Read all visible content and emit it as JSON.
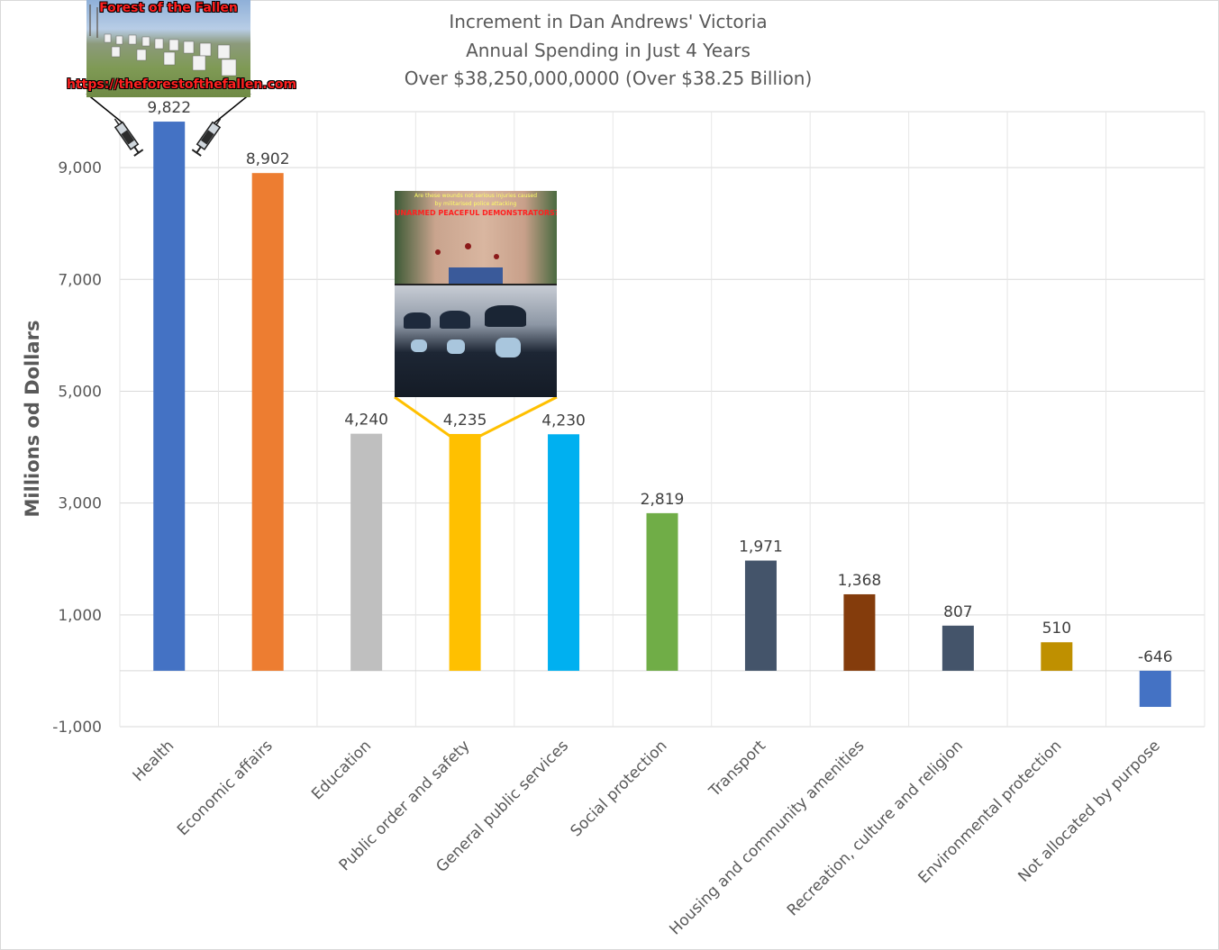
{
  "title_lines": [
    "Increment in Dan Andrews' Victoria",
    "Annual Spending in Just 4 Years",
    "Over $38,250,000,0000 (Over $38.25 Billion)"
  ],
  "forest_image": {
    "heading": "Forest of the Fallen",
    "url": "https://theforestofthefallen.com"
  },
  "police_image": {
    "caption_line1": "Are these wounds not serious injuries caused",
    "caption_line2": "by militarised police attacking",
    "caption_line3": "UNARMED PEACEFUL DEMONSTRATORS?"
  },
  "chart_data": {
    "type": "bar",
    "title": "Increment in Dan Andrews' Victoria Annual Spending in Just 4 Years Over $38,250,000,0000 (Over $38.25 Billion)",
    "xlabel": "",
    "ylabel": "Millions od Dollars",
    "ylim": [
      -1000,
      10000
    ],
    "yticks": [
      -1000,
      1000,
      3000,
      5000,
      7000,
      9000
    ],
    "ytick_labels": [
      "-1,000",
      "1,000",
      "3,000",
      "5,000",
      "7,000",
      "9,000"
    ],
    "grid": true,
    "legend": "none",
    "categories": [
      "Health",
      "Economic affairs",
      "Education",
      "Public order and safety",
      "General public services",
      "Social protection",
      "Transport",
      "Housing and community amenities",
      "Recreation, culture and religion",
      "Environmental protection",
      "Not allocated by purpose"
    ],
    "values": [
      9822,
      8902,
      4240,
      4235,
      4230,
      2819,
      1971,
      1368,
      807,
      510,
      -646
    ],
    "value_labels": [
      "9,822",
      "8,902",
      "4,240",
      "4,235",
      "4,230",
      "2,819",
      "1,971",
      "1,368",
      "807",
      "510",
      "-646"
    ],
    "colors": [
      "#4472c4",
      "#ed7d31",
      "#bfbfbf",
      "#ffc000",
      "#00b0f0",
      "#70ad47",
      "#44546a",
      "#843c0c",
      "#44546a",
      "#bf9000",
      "#4472c4"
    ]
  }
}
